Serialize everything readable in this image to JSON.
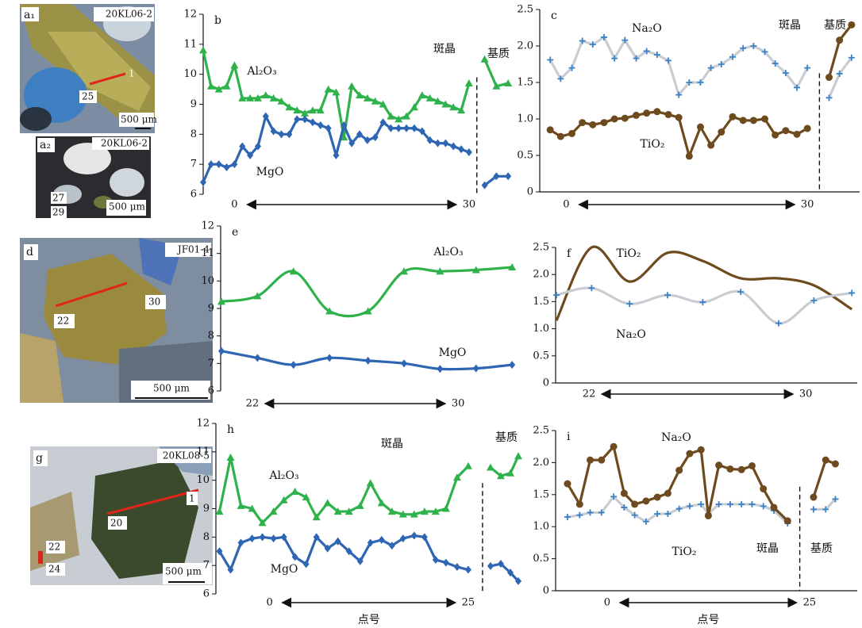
{
  "photos": [
    {
      "label": "a₁",
      "sample": "20KL06-2",
      "points": [
        "1",
        "25"
      ],
      "scale": "500 μm"
    },
    {
      "label": "a₂",
      "sample": "20KL06-2",
      "points": [
        "27",
        "29"
      ],
      "scale": "500 μm"
    },
    {
      "label": "d",
      "sample": "JF01-4",
      "points": [
        "30",
        "22"
      ],
      "scale": "500 μm"
    },
    {
      "label": "g",
      "sample": "20KL08-5",
      "points": [
        "1",
        "20",
        "22",
        "24"
      ],
      "scale": "500 μm"
    }
  ],
  "chart_data": [
    {
      "type": "line",
      "panel": "b",
      "x": [
        -4,
        -3,
        -2,
        -1,
        0,
        1,
        2,
        3,
        4,
        5,
        6,
        7,
        8,
        9,
        10,
        11,
        12,
        13,
        14,
        15,
        16,
        17,
        18,
        19,
        20,
        21,
        22,
        23,
        24,
        25,
        26,
        27,
        28,
        29,
        30,
        31,
        32,
        33.5,
        35
      ],
      "series": [
        {
          "name": "Al₂O₃",
          "color": "#2fb24c",
          "marker": "triangle",
          "values": [
            10.8,
            9.6,
            9.5,
            9.6,
            10.3,
            9.2,
            9.2,
            9.2,
            9.3,
            9.2,
            9.1,
            8.9,
            8.8,
            8.7,
            8.8,
            8.8,
            9.5,
            9.4,
            7.9,
            9.6,
            9.3,
            9.2,
            9.1,
            9.0,
            8.6,
            8.5,
            8.6,
            8.9,
            9.3,
            9.2,
            9.1,
            9.0,
            8.9,
            8.8,
            9.7,
            null,
            10.5,
            9.6,
            9.7
          ]
        },
        {
          "name": "MgO",
          "color": "#2f66b3",
          "marker": "diamond",
          "values": [
            6.4,
            7.0,
            7.0,
            6.9,
            7.0,
            7.6,
            7.3,
            7.6,
            8.6,
            8.1,
            8.0,
            8.0,
            8.5,
            8.5,
            8.4,
            8.3,
            8.2,
            7.3,
            8.3,
            7.7,
            8.0,
            7.8,
            7.9,
            8.4,
            8.2,
            8.2,
            8.2,
            8.2,
            8.1,
            7.8,
            7.7,
            7.7,
            7.6,
            7.5,
            7.4,
            null,
            6.3,
            6.6,
            6.6
          ]
        }
      ],
      "xlim": [
        -4,
        36
      ],
      "ylim": [
        6,
        12
      ],
      "yticks": [
        6,
        7,
        8,
        9,
        10,
        11,
        12
      ],
      "xticks": [
        0,
        30
      ],
      "annotations": [
        "斑晶",
        "基质"
      ],
      "divider": 31,
      "axis_bottom": false,
      "smooth": false
    },
    {
      "type": "line",
      "panel": "c",
      "x": [
        -2,
        -0.7,
        0.7,
        2,
        3.3,
        4.7,
        6,
        7.3,
        8.7,
        10,
        11.3,
        12.7,
        14,
        15.3,
        16.7,
        18,
        19.3,
        20.7,
        22,
        23.3,
        24.7,
        26,
        27.3,
        28.7,
        30,
        31,
        32.7,
        34,
        35.5
      ],
      "series": [
        {
          "name": "Na₂O",
          "color": "#c9cdd3",
          "marker": "plus",
          "marker_color": "#3b82c6",
          "values": [
            1.81,
            1.55,
            1.7,
            2.07,
            2.02,
            2.12,
            1.83,
            2.08,
            1.83,
            1.93,
            1.88,
            1.8,
            1.33,
            1.5,
            1.5,
            1.7,
            1.75,
            1.85,
            1.97,
            2.0,
            1.92,
            1.76,
            1.63,
            1.43,
            1.7,
            null,
            1.29,
            1.62,
            1.84
          ]
        },
        {
          "name": "TiO₂",
          "color": "#6e4b1e",
          "marker": "circle",
          "values": [
            0.85,
            0.76,
            0.8,
            0.95,
            0.92,
            0.95,
            1.0,
            1.01,
            1.05,
            1.08,
            1.1,
            1.06,
            1.02,
            0.49,
            0.89,
            0.64,
            0.82,
            1.03,
            0.98,
            0.98,
            1.0,
            0.78,
            0.84,
            0.79,
            0.87,
            null,
            1.57,
            2.08,
            2.29
          ]
        }
      ],
      "xlim": [
        -3.3,
        36.5
      ],
      "ylim": [
        0,
        2.5
      ],
      "yticks": [
        0,
        0.5,
        {
          "value": 1,
          "label": "1.0"
        },
        1.5,
        {
          "value": 2,
          "label": "2.0"
        },
        2.5
      ],
      "xticks": [
        0,
        30
      ],
      "annotations": [
        "斑晶",
        "基质"
      ],
      "divider": 31.5,
      "axis_bottom": true,
      "smooth": false
    },
    {
      "type": "line",
      "panel": "e",
      "x": [
        20.8,
        22.2,
        23.6,
        25.0,
        26.5,
        27.9,
        29.3,
        30.7,
        32.1
      ],
      "series": [
        {
          "name": "Al₂O₃",
          "color": "#2fb24c",
          "marker": "triangle",
          "values": [
            9.25,
            9.45,
            10.35,
            8.9,
            8.9,
            10.35,
            10.35,
            10.4,
            10.5
          ]
        },
        {
          "name": "MgO",
          "color": "#2f66b3",
          "marker": "diamond",
          "values": [
            7.45,
            7.2,
            6.95,
            7.2,
            7.1,
            7.0,
            6.8,
            6.82,
            6.95
          ]
        }
      ],
      "xlim": [
        20.77,
        32.25
      ],
      "ylim": [
        6,
        12
      ],
      "yticks": [
        6,
        7,
        8,
        9,
        10,
        11,
        12
      ],
      "xticks": [
        22,
        30
      ],
      "axis_bottom": false,
      "smooth": true
    },
    {
      "type": "line",
      "panel": "f",
      "x": [
        20.8,
        22.1,
        23.5,
        24.9,
        26.2,
        27.6,
        29.0,
        30.3,
        31.7
      ],
      "series": [
        {
          "name": "TiO₂",
          "color": "#6e4b1e",
          "values": [
            1.15,
            2.5,
            1.87,
            2.4,
            2.25,
            1.93,
            1.93,
            1.8,
            1.36
          ]
        },
        {
          "name": "Na₂O",
          "color": "#c9cdd3",
          "marker": "plus",
          "marker_color": "#3b82c6",
          "values": [
            1.62,
            1.75,
            1.46,
            1.62,
            1.49,
            1.68,
            1.1,
            1.52,
            1.66
          ]
        }
      ],
      "xlim": [
        20.77,
        31.9
      ],
      "ylim": [
        0,
        2.5
      ],
      "yticks": [
        0,
        0.5,
        {
          "value": 1,
          "label": "1.0"
        },
        1.5,
        {
          "value": 2,
          "label": "2.0"
        },
        2.5
      ],
      "xticks": [
        22,
        30
      ],
      "axis_bottom": true,
      "smooth": true
    },
    {
      "type": "line",
      "panel": "h",
      "x": [
        -6.3,
        -4.9,
        -3.6,
        -2.2,
        -0.9,
        0.5,
        1.8,
        3.2,
        4.6,
        5.9,
        7.3,
        8.6,
        10,
        11.4,
        12.7,
        14.1,
        15.4,
        16.8,
        18.2,
        19.5,
        20.9,
        22.2,
        23.6,
        25,
        26.5,
        27.8,
        29.1,
        30.3,
        31.3
      ],
      "series": [
        {
          "name": "Al₂O₃",
          "color": "#2fb24c",
          "marker": "triangle",
          "values": [
            8.9,
            10.8,
            9.1,
            9.0,
            8.5,
            8.9,
            9.3,
            9.6,
            9.4,
            8.7,
            9.2,
            8.9,
            8.9,
            9.1,
            9.9,
            9.2,
            8.9,
            8.8,
            8.8,
            8.9,
            8.9,
            9.0,
            10.1,
            10.5,
            null,
            10.45,
            10.15,
            10.25,
            10.85
          ]
        },
        {
          "name": "MgO",
          "color": "#2f66b3",
          "marker": "diamond",
          "values": [
            7.5,
            6.85,
            7.8,
            7.95,
            8.0,
            7.95,
            8.0,
            7.3,
            7.05,
            8.0,
            7.6,
            7.85,
            7.5,
            7.15,
            7.8,
            7.9,
            7.7,
            7.95,
            8.05,
            8.0,
            7.2,
            7.1,
            6.95,
            6.85,
            null,
            6.98,
            7.06,
            6.75,
            6.45
          ]
        }
      ],
      "xlim": [
        -6.75,
        31.5
      ],
      "ylim": [
        6,
        12
      ],
      "yticks": [
        6,
        7,
        8,
        9,
        10,
        11,
        12
      ],
      "xticks": [
        0,
        25
      ],
      "annotations": [
        "斑晶",
        "基质"
      ],
      "divider": 26.8,
      "x_label": "点号",
      "axis_bottom": false,
      "smooth": false
    },
    {
      "type": "line",
      "panel": "i",
      "x": [
        -4.9,
        -3.4,
        -2.1,
        -0.7,
        0.8,
        2.1,
        3.4,
        4.8,
        6.2,
        7.5,
        8.9,
        10.2,
        11.6,
        12.5,
        13.8,
        15.2,
        16.6,
        17.9,
        19.3,
        20.6,
        22.3,
        23.5,
        25.5,
        27,
        28.2
      ],
      "series": [
        {
          "name": "Na₂O",
          "color": "#c9cdd3",
          "marker": "plus",
          "marker_color": "#3b82c6",
          "values": [
            1.15,
            1.18,
            1.22,
            1.22,
            1.47,
            1.3,
            1.18,
            1.08,
            1.2,
            1.2,
            1.28,
            1.32,
            1.35,
            1.2,
            1.35,
            1.35,
            1.35,
            1.35,
            1.32,
            1.25,
            1.05,
            null,
            1.27,
            1.27,
            1.43
          ]
        },
        {
          "name": "TiO₂",
          "color": "#6e4b1e",
          "marker": "circle",
          "values": [
            1.67,
            1.35,
            2.04,
            2.04,
            2.25,
            1.52,
            1.35,
            1.4,
            1.46,
            1.52,
            1.88,
            2.14,
            2.2,
            1.17,
            1.96,
            1.9,
            1.89,
            1.95,
            1.59,
            1.3,
            1.09,
            null,
            1.46,
            2.04,
            1.98
          ]
        }
      ],
      "xlim": [
        -6.37,
        30.9
      ],
      "ylim": [
        0,
        2.5
      ],
      "yticks": [
        0,
        0.5,
        {
          "value": 1,
          "label": "1.0"
        },
        1.5,
        {
          "value": 2,
          "label": "2.0"
        },
        2.5
      ],
      "xticks": [
        0,
        25
      ],
      "annotations": [
        "斑晶",
        "基质"
      ],
      "divider": 23.8,
      "x_label": "点号",
      "axis_bottom": true,
      "smooth": false
    }
  ]
}
